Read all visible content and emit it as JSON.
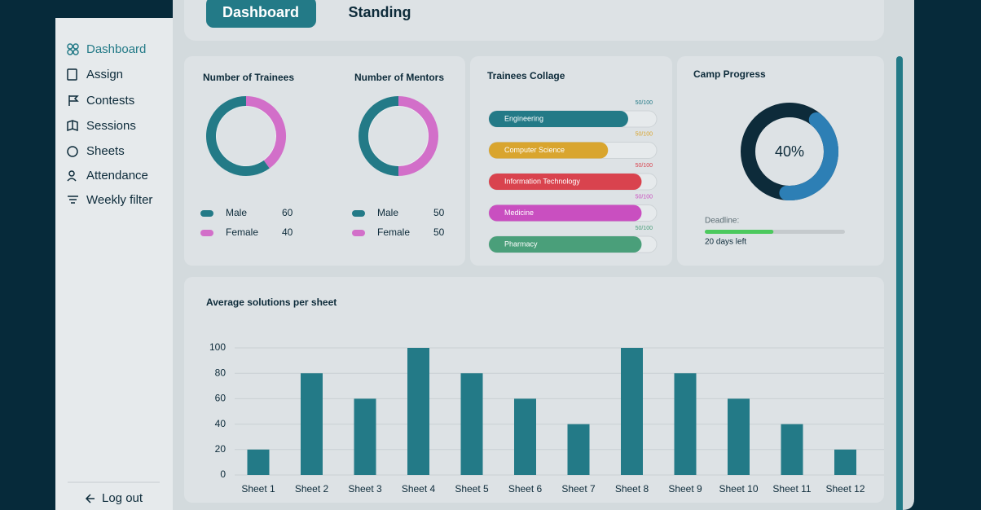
{
  "sidebar": {
    "items": [
      "Dashboard",
      "Assign",
      "Contests",
      "Sessions",
      "Sheets",
      "Attendance",
      "Weekly filter"
    ],
    "logout": "Log out"
  },
  "tabs": [
    "Dashboard",
    "Standing"
  ],
  "trainees": {
    "title": "Number of Trainees",
    "legend": [
      {
        "label": "Male",
        "value": 60,
        "color": "#237a87"
      },
      {
        "label": "Female",
        "value": 40,
        "color": "#d26fc9"
      }
    ]
  },
  "mentors": {
    "title": "Number of Mentors",
    "legend": [
      {
        "label": "Male",
        "value": 50,
        "color": "#237a87"
      },
      {
        "label": "Female",
        "value": 50,
        "color": "#d26fc9"
      }
    ]
  },
  "collage": {
    "title": "Trainees Collage",
    "items": [
      {
        "name": "Engineering",
        "label": "50/100",
        "fill": 83,
        "color": "#237a87"
      },
      {
        "name": "Computer Science",
        "label": "50/100",
        "fill": 71,
        "color": "#d9a52e"
      },
      {
        "name": "Information Technology",
        "label": "50/100",
        "fill": 91,
        "color": "#d9434e"
      },
      {
        "name": "Medicine",
        "label": "50/100",
        "fill": 91,
        "color": "#c94fc0"
      },
      {
        "name": "Pharmacy",
        "label": "50/100",
        "fill": 91,
        "color": "#4a9f7a"
      }
    ]
  },
  "progress": {
    "title": "Camp Progress",
    "value": 40,
    "label": "40%",
    "deadline": "Deadline:",
    "deadline_fill": 49,
    "days_left": "20 days left"
  },
  "chart": {
    "type": "bar",
    "title": "Average solutions per sheet",
    "categories": [
      "Sheet 1",
      "Sheet 2",
      "Sheet 3",
      "Sheet 4",
      "Sheet 5",
      "Sheet 6",
      "Sheet 7",
      "Sheet 8",
      "Sheet 9",
      "Sheet 10",
      "Sheet 11",
      "Sheet 12"
    ],
    "values": [
      20,
      80,
      60,
      100,
      80,
      60,
      40,
      100,
      80,
      60,
      40,
      20
    ],
    "color": "#237a87",
    "ylim": [
      0,
      100
    ],
    "yticks": [
      0,
      20,
      40,
      60,
      80,
      100
    ],
    "grid": true
  }
}
